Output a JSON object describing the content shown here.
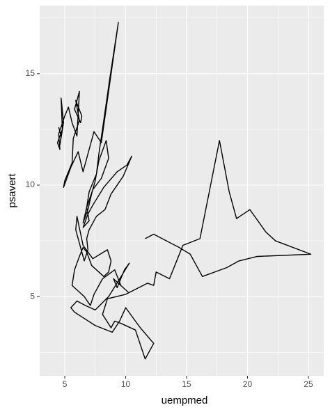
{
  "chart_data": {
    "type": "line",
    "xlabel": "uempmed",
    "ylabel": "psavert",
    "x": [
      4.5,
      4.7,
      4.6,
      4.9,
      4.7,
      4.8,
      4.4,
      4.6,
      4.5,
      5.0,
      5.3,
      5.6,
      6.0,
      6.2,
      5.8,
      6.3,
      6.4,
      5.9,
      6.2,
      5.7,
      5.6,
      5.0,
      4.9,
      5.5,
      6.1,
      6.5,
      7.4,
      8.0,
      9.4,
      8.7,
      8.2,
      7.8,
      7.6,
      7.0,
      6.8,
      6.5,
      6.9,
      7.2,
      7.5,
      7.8,
      8.4,
      8.6,
      8.0,
      7.3,
      6.8,
      7.0,
      6.5,
      6.9,
      7.3,
      8.2,
      9.3,
      10.1,
      10.5,
      9.8,
      8.8,
      8.3,
      7.6,
      7.0,
      6.8,
      6.9,
      6.6,
      6.2,
      5.9,
      6.0,
      6.5,
      7.3,
      8.5,
      8.8,
      8.6,
      8.2,
      7.2,
      6.8,
      6.5,
      6.2,
      5.8,
      5.6,
      6.6,
      7.1,
      7.4,
      8.1,
      9.1,
      9.6,
      10.2,
      9.0,
      9.3,
      9.9,
      10.3,
      9.4,
      8.6,
      7.5,
      6.7,
      6.0,
      5.5,
      5.8,
      7.5,
      8.9,
      9.5,
      10.0,
      11.2,
      12.3,
      11.6,
      10.8,
      9.6,
      9.1,
      8.8,
      8.1,
      8.5,
      10.0,
      11.8,
      12.3,
      12.5,
      13.6,
      14.7,
      16.1,
      17.7,
      18.5,
      19.1,
      20.2,
      21.5,
      22.3,
      25.2,
      20.8,
      19.3,
      18.3,
      16.3,
      15.3,
      14.4,
      12.3,
      11.6
    ],
    "values": [
      12.6,
      12.2,
      11.8,
      12.8,
      13.9,
      12.5,
      11.9,
      11.6,
      12.3,
      13.1,
      13.5,
      12.8,
      12.2,
      14.2,
      13.4,
      12.8,
      13.1,
      13.8,
      12.9,
      12.1,
      11.0,
      10.2,
      9.9,
      10.8,
      11.5,
      10.6,
      12.4,
      11.9,
      17.3,
      14.8,
      12.9,
      11.4,
      10.5,
      9.7,
      9.0,
      8.3,
      8.9,
      9.6,
      10.2,
      11.1,
      12.0,
      11.2,
      10.3,
      9.8,
      9.0,
      8.4,
      8.1,
      8.7,
      9.1,
      9.9,
      10.6,
      10.9,
      11.3,
      10.4,
      9.6,
      8.9,
      8.6,
      8.0,
      7.6,
      7.1,
      6.6,
      7.4,
      8.0,
      8.6,
      7.3,
      6.7,
      7.1,
      6.6,
      6.1,
      5.9,
      6.4,
      7.0,
      7.2,
      6.8,
      6.2,
      5.5,
      5.0,
      4.6,
      5.1,
      5.8,
      6.2,
      5.5,
      5.2,
      5.8,
      5.4,
      6.2,
      6.5,
      5.7,
      5.0,
      4.4,
      4.6,
      4.8,
      4.5,
      4.3,
      3.7,
      3.4,
      3.9,
      4.5,
      3.6,
      2.9,
      2.2,
      3.5,
      3.8,
      3.9,
      3.6,
      4.2,
      4.9,
      5.1,
      5.6,
      5.5,
      6.1,
      5.8,
      7.3,
      7.6,
      12.0,
      9.7,
      8.5,
      8.9,
      7.9,
      7.5,
      6.9,
      6.8,
      6.6,
      6.3,
      5.9,
      6.9,
      7.2,
      7.8,
      7.6
    ],
    "color": "#000000",
    "xlim": [
      2.94,
      26.26
    ],
    "xticks": [
      5,
      10,
      15,
      20,
      25
    ],
    "ylim": [
      1.445,
      18.055
    ],
    "yticks": [
      5,
      10,
      15
    ],
    "grid": true
  }
}
